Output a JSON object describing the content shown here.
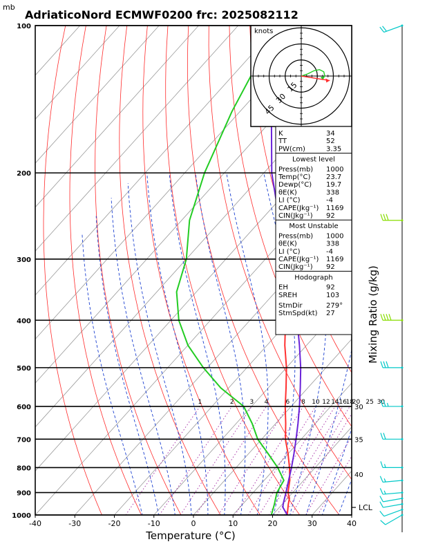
{
  "header": {
    "unit_top": "mb",
    "title": "AdriaticoNord ECMWF0200 frc: 2025082112"
  },
  "chart_data": {
    "type": "skew-t log-p sounding",
    "xlabel": "Temperature (°C)",
    "ylabel_right": "Mixing Ratio (g/kg)",
    "xlim": [
      -40,
      40
    ],
    "plim": [
      1000,
      100
    ],
    "x_ticks": [
      -40,
      -30,
      -20,
      -10,
      0,
      10,
      20,
      30,
      40
    ],
    "pressure_ticks": [
      1000,
      900,
      800,
      700,
      600,
      500,
      400,
      300,
      200,
      100
    ],
    "grid": true,
    "colors": {
      "temperature": "#ff3030",
      "dewpoint": "#22cc22",
      "parcel": "#6a22d8",
      "isotherm": "#999999",
      "dry_adiabat": "#ff2a2a",
      "moist_adiabat": "#1a3fd0",
      "mixing_ratio": "#a020a0",
      "wind_barb": "#00c8c8",
      "wind_barb_highlight": "#88dd00"
    },
    "series": [
      {
        "name": "Temperature",
        "points": [
          [
            1000,
            23.7
          ],
          [
            950,
            21.5
          ],
          [
            925,
            20.5
          ],
          [
            900,
            18.8
          ],
          [
            850,
            16.5
          ],
          [
            800,
            13.5
          ],
          [
            750,
            10.0
          ],
          [
            700,
            6.0
          ],
          [
            650,
            2.5
          ],
          [
            600,
            -1.5
          ],
          [
            550,
            -5.5
          ],
          [
            500,
            -10.0
          ],
          [
            450,
            -15.5
          ],
          [
            400,
            -21.0
          ],
          [
            350,
            -28.0
          ],
          [
            300,
            -36.0
          ],
          [
            250,
            -46.0
          ],
          [
            200,
            -49.5
          ],
          [
            150,
            -53.0
          ],
          [
            100,
            -56.0
          ]
        ]
      },
      {
        "name": "Dewpoint",
        "points": [
          [
            1000,
            19.7
          ],
          [
            950,
            18.0
          ],
          [
            925,
            17.0
          ],
          [
            900,
            16.0
          ],
          [
            850,
            15.0
          ],
          [
            800,
            10.5
          ],
          [
            750,
            5.0
          ],
          [
            700,
            -1.0
          ],
          [
            650,
            -6.0
          ],
          [
            600,
            -12.0
          ],
          [
            550,
            -22.0
          ],
          [
            500,
            -31.0
          ],
          [
            450,
            -40.0
          ],
          [
            400,
            -48.0
          ],
          [
            350,
            -55.0
          ],
          [
            300,
            -60.0
          ],
          [
            250,
            -68.0
          ],
          [
            200,
            -75.0
          ],
          [
            150,
            -82.0
          ],
          [
            100,
            -90.0
          ]
        ]
      },
      {
        "name": "Parcel",
        "points": [
          [
            1000,
            23.7
          ],
          [
            965,
            20.9
          ],
          [
            950,
            20.2
          ],
          [
            900,
            18.3
          ],
          [
            850,
            16.2
          ],
          [
            800,
            14.0
          ],
          [
            750,
            11.5
          ],
          [
            700,
            8.7
          ],
          [
            650,
            5.6
          ],
          [
            600,
            2.1
          ],
          [
            550,
            -1.9
          ],
          [
            500,
            -6.4
          ],
          [
            450,
            -11.8
          ],
          [
            400,
            -18.1
          ],
          [
            350,
            -25.5
          ],
          [
            300,
            -34.4
          ],
          [
            250,
            -45.3
          ],
          [
            200,
            -58.0
          ],
          [
            150,
            -72.0
          ],
          [
            100,
            -88.0
          ]
        ]
      }
    ],
    "mixing_ratio_labels": [
      1,
      2,
      3,
      4,
      6,
      8,
      10,
      12,
      14,
      16,
      18,
      20,
      25,
      30
    ],
    "theta_e_labels": [
      {
        "label": "30",
        "p": 600
      },
      {
        "label": "35",
        "p": 700
      },
      {
        "label": "40",
        "p": 825
      }
    ],
    "lcl": {
      "label": "LCL",
      "p": 965
    },
    "hodograph": {
      "units": "knots",
      "rings_kt": [
        15,
        30,
        45
      ],
      "ring_labels": [
        "15",
        "30",
        "45"
      ],
      "wind_trace": [
        [
          0,
          0
        ],
        [
          6,
          2
        ],
        [
          12,
          5
        ],
        [
          17,
          6
        ],
        [
          21,
          4
        ],
        [
          22,
          0
        ],
        [
          20,
          -2
        ]
      ],
      "storm_motion": {
        "dir": 279,
        "spd": 27
      }
    },
    "indices": {
      "general": [
        {
          "label": "K",
          "value": "34"
        },
        {
          "label": "TT",
          "value": "52"
        },
        {
          "label": "PW(cm)",
          "value": "3.35"
        }
      ],
      "lowest_level": {
        "heading": "Lowest level",
        "rows": [
          {
            "label": "Press(mb)",
            "value": "1000"
          },
          {
            "label": "Temp(°C)",
            "value": "23.7"
          },
          {
            "label": "Dewp(°C)",
            "value": "19.7"
          },
          {
            "label": "θE(K)",
            "value": "338"
          },
          {
            "label": "LI (°C)",
            "value": "-4"
          },
          {
            "label": "CAPE(Jkg⁻¹)",
            "value": "1169"
          },
          {
            "label": "CIN(Jkg⁻¹)",
            "value": "92"
          }
        ]
      },
      "most_unstable": {
        "heading": "Most Unstable",
        "rows": [
          {
            "label": "Press(mb)",
            "value": "1000"
          },
          {
            "label": "θE(K)",
            "value": "338"
          },
          {
            "label": "LI (°C)",
            "value": "-4"
          },
          {
            "label": "CAPE(Jkg⁻¹)",
            "value": "1169"
          },
          {
            "label": "CIN(Jkg⁻¹)",
            "value": "92"
          }
        ]
      },
      "hodograph_box": {
        "heading": "Hodograph",
        "rows": [
          {
            "label": "EH",
            "value": "92"
          },
          {
            "label": "SREH",
            "value": "103"
          }
        ],
        "storm_rows": [
          {
            "label": "StmDir",
            "value": "279°"
          },
          {
            "label": "StmSpd(kt)",
            "value": "27"
          }
        ]
      }
    },
    "wind_profile": [
      {
        "p": 1000,
        "dir": 240,
        "spd": 10
      },
      {
        "p": 975,
        "dir": 250,
        "spd": 10
      },
      {
        "p": 950,
        "dir": 260,
        "spd": 12
      },
      {
        "p": 925,
        "dir": 260,
        "spd": 12
      },
      {
        "p": 900,
        "dir": 265,
        "spd": 15
      },
      {
        "p": 850,
        "dir": 265,
        "spd": 15
      },
      {
        "p": 800,
        "dir": 270,
        "spd": 15
      },
      {
        "p": 700,
        "dir": 270,
        "spd": 20
      },
      {
        "p": 600,
        "dir": 270,
        "spd": 25
      },
      {
        "p": 500,
        "dir": 270,
        "spd": 30
      },
      {
        "p": 400,
        "dir": 270,
        "spd": 40,
        "highlight": true
      },
      {
        "p": 250,
        "dir": 270,
        "spd": 30,
        "highlight": true
      },
      {
        "p": 100,
        "dir": 250,
        "spd": 20
      }
    ]
  }
}
